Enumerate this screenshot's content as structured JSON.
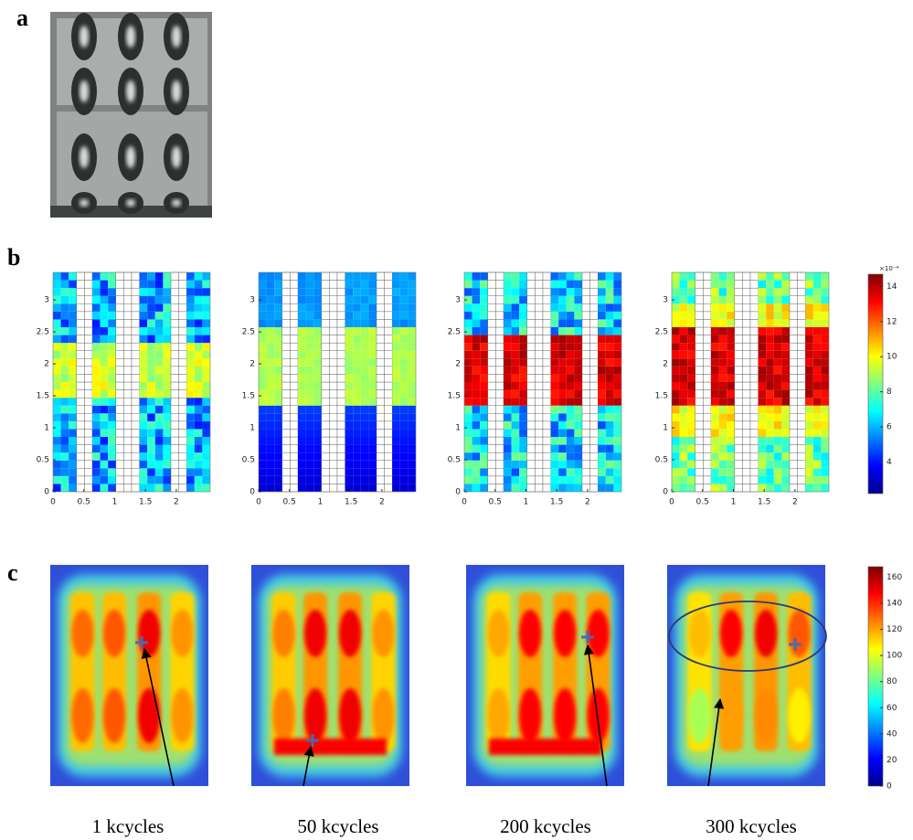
{
  "panel_a": {
    "label": "a"
  },
  "panel_b": {
    "label": "b",
    "xlim": [
      0,
      2.55
    ],
    "ylim": [
      0,
      3.43
    ],
    "xticks": [
      0,
      0.5,
      1,
      1.5,
      2
    ],
    "yticks": [
      0,
      0.5,
      1,
      1.5,
      2,
      2.5,
      3
    ],
    "colorbar": {
      "exponent_label": "×10⁻⁴",
      "lim": [
        2.2,
        14.7
      ],
      "ticks": [
        4,
        6,
        8,
        10,
        12,
        14
      ]
    }
  },
  "panel_c": {
    "label": "c",
    "colorbar": {
      "lim": [
        0,
        168
      ],
      "ticks": [
        0,
        20,
        40,
        60,
        80,
        100,
        120,
        140,
        160
      ]
    }
  },
  "captions": [
    "1 kcycles",
    "50 kcycles",
    "200 kcycles",
    "300 kcycles"
  ]
}
